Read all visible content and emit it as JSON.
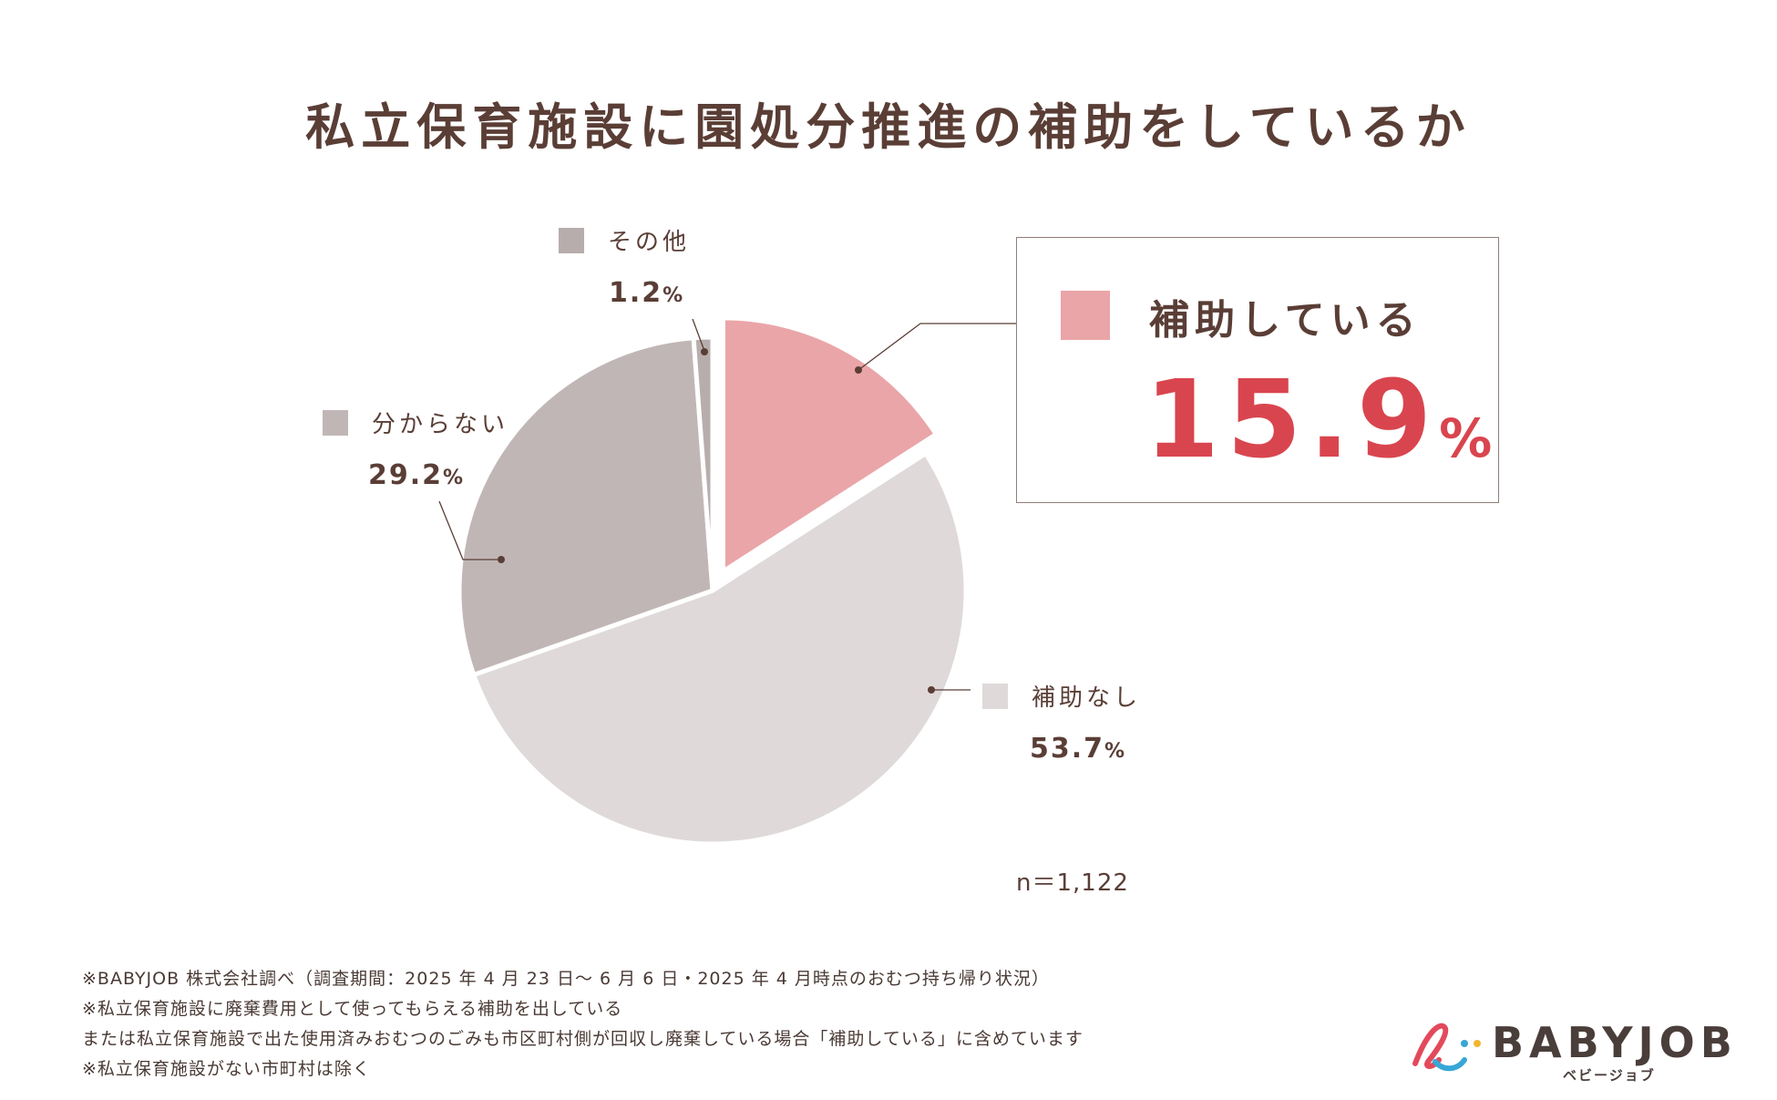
{
  "title": "私立保育施設に園処分推進の補助をしているか",
  "chart_data": {
    "type": "pie",
    "title": "私立保育施設に園処分推進の補助をしているか",
    "slices": [
      {
        "label": "補助している",
        "value": 15.9,
        "display": "15.9",
        "color": "#eaa5a8",
        "exploded": true
      },
      {
        "label": "補助なし",
        "value": 53.7,
        "display": "53.7",
        "color": "#dfd9d9",
        "exploded": false
      },
      {
        "label": "分からない",
        "value": 29.2,
        "display": "29.2",
        "color": "#c1b6b6",
        "exploded": false
      },
      {
        "label": "その他",
        "value": 1.2,
        "display": "1.2",
        "color": "#b8adad",
        "exploded": false
      }
    ],
    "unit": "%",
    "n_label": "n＝1,122"
  },
  "notes": [
    "※BABYJOB 株式会社調べ（調査期間：2025 年 4 月 23 日〜 6 月 6 日・2025 年 4 月時点のおむつ持ち帰り状況）",
    "※私立保育施設に廃棄費用として使ってもらえる補助を出している",
    "または私立保育施設で出た使用済みおむつのごみも市区町村側が回収し廃棄している場合「補助している」に含めています",
    "※私立保育施設がない市町村は除く"
  ],
  "logo": {
    "word": "BABYJOB",
    "kana": "ベビージョブ",
    "icon": "babyjob-logo-icon"
  },
  "colors": {
    "title": "#5a3e36",
    "accent_red": "#d9454e",
    "callout_border": "#8f7f79"
  }
}
